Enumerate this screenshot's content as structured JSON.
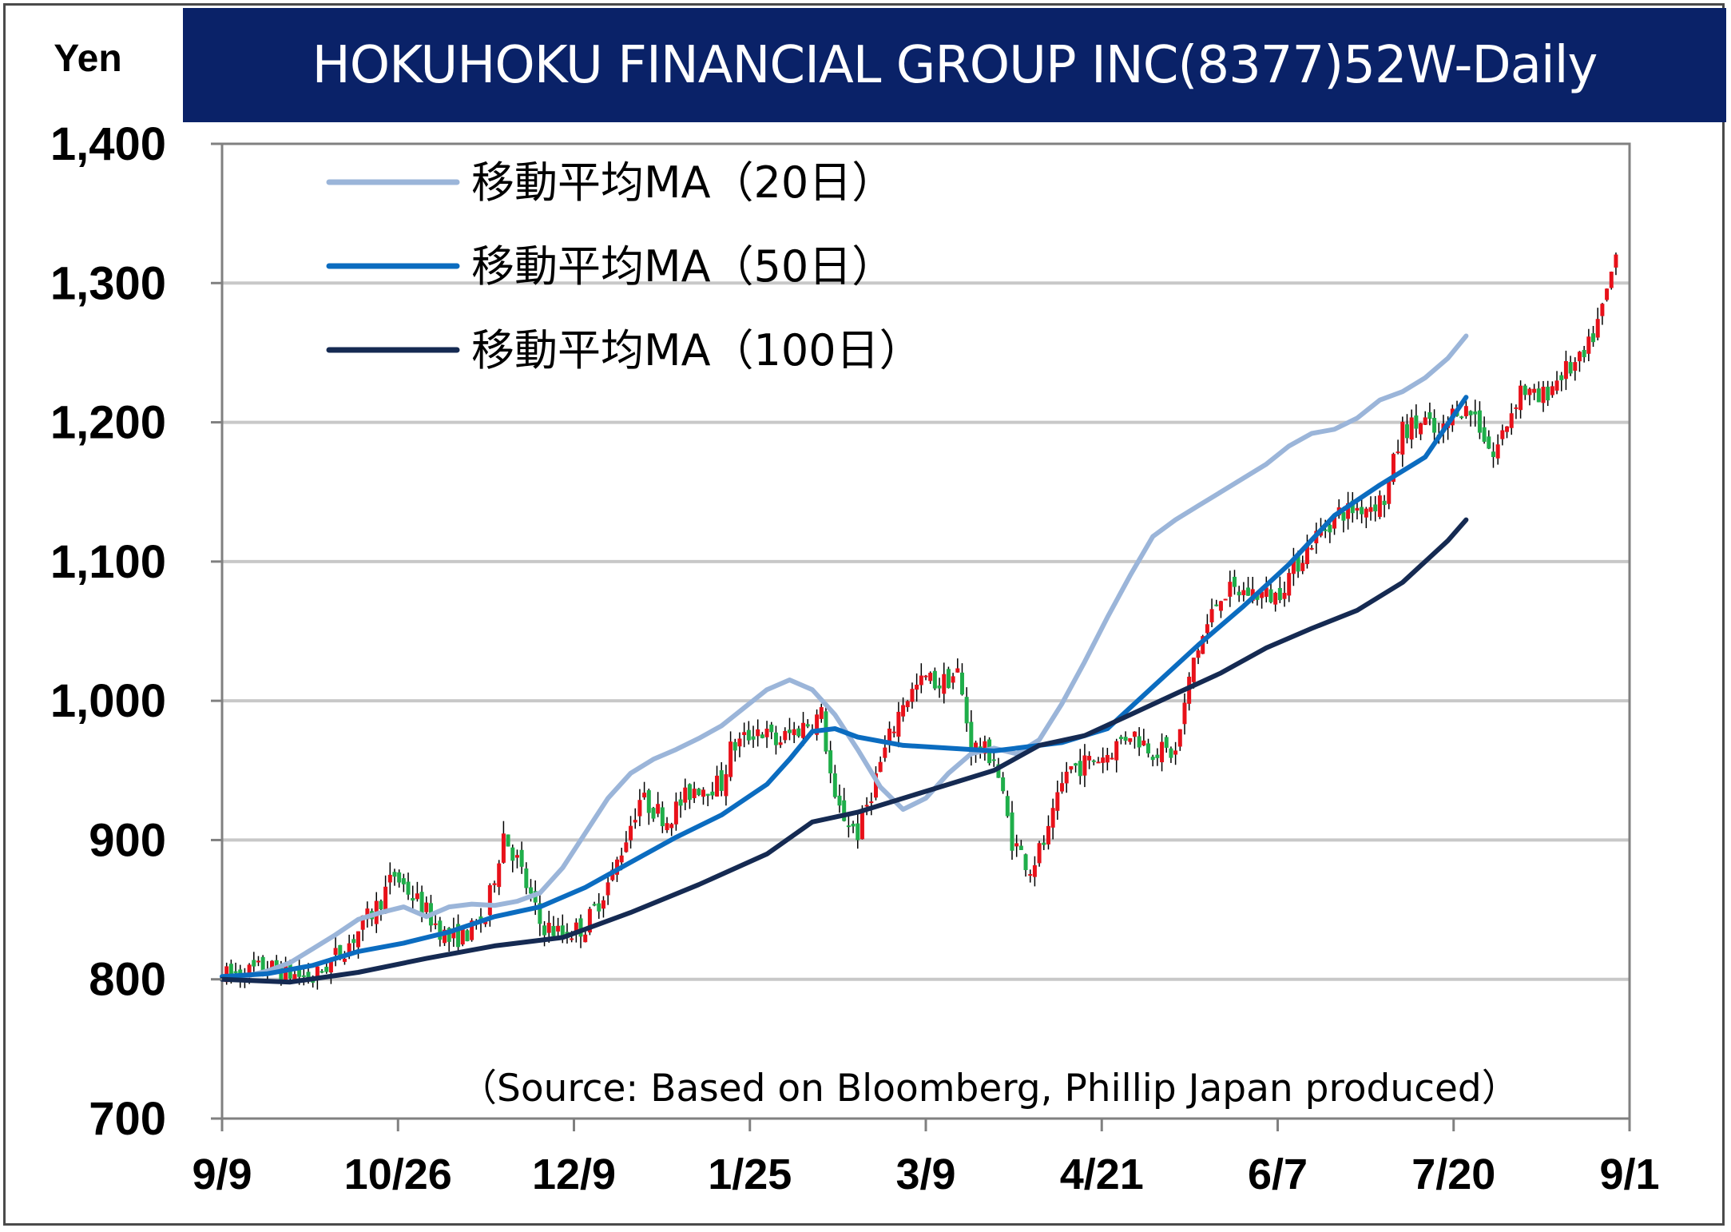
{
  "title": "HOKUHOKU FINANCIAL GROUP INC(8377)52W-Daily",
  "unit": "Yen",
  "source": "（Source: Based on Bloomberg, Phillip Japan produced）",
  "colors": {
    "title_bg": "#0a2268",
    "up": "#e8111a",
    "down": "#1fae4a",
    "wick": "#000000",
    "ma20": "#9bb5d9",
    "ma50": "#0b6cc0",
    "ma100": "#152a52",
    "grid": "#c8c8c8"
  },
  "chart_data": {
    "type": "candlestick",
    "title": "HOKUHOKU FINANCIAL GROUP INC(8377)52W-Daily",
    "ylabel": "Yen",
    "ylim": [
      700,
      1400
    ],
    "yticks": [
      700,
      800,
      900,
      1000,
      1100,
      1200,
      1300,
      1400
    ],
    "ytick_labels": [
      "700",
      "800",
      "900",
      "1,000",
      "1,100",
      "1,200",
      "1,300",
      "1,400"
    ],
    "xtick_labels": [
      "9/9",
      "10/26",
      "12/9",
      "1/25",
      "3/9",
      "4/21",
      "6/7",
      "7/20",
      "9/1"
    ],
    "grid": true,
    "legend_position": "top-left",
    "series": [
      {
        "name": "移動平均MA（20日）",
        "kind": "line",
        "color": "#9bb5d9",
        "points": [
          [
            0,
            800
          ],
          [
            5,
            802
          ],
          [
            10,
            806
          ],
          [
            15,
            812
          ],
          [
            20,
            822
          ],
          [
            25,
            832
          ],
          [
            30,
            843
          ],
          [
            35,
            848
          ],
          [
            40,
            852
          ],
          [
            45,
            845
          ],
          [
            50,
            852
          ],
          [
            55,
            854
          ],
          [
            60,
            853
          ],
          [
            65,
            856
          ],
          [
            70,
            862
          ],
          [
            75,
            880
          ],
          [
            80,
            905
          ],
          [
            85,
            930
          ],
          [
            90,
            948
          ],
          [
            95,
            958
          ],
          [
            100,
            965
          ],
          [
            105,
            973
          ],
          [
            110,
            982
          ],
          [
            115,
            995
          ],
          [
            120,
            1008
          ],
          [
            125,
            1015
          ],
          [
            130,
            1008
          ],
          [
            135,
            990
          ],
          [
            140,
            965
          ],
          [
            145,
            938
          ],
          [
            150,
            922
          ],
          [
            155,
            930
          ],
          [
            160,
            948
          ],
          [
            165,
            962
          ],
          [
            170,
            966
          ],
          [
            175,
            962
          ],
          [
            180,
            972
          ],
          [
            185,
            998
          ],
          [
            190,
            1028
          ],
          [
            195,
            1060
          ],
          [
            200,
            1090
          ],
          [
            205,
            1118
          ],
          [
            210,
            1130
          ],
          [
            215,
            1140
          ],
          [
            220,
            1150
          ],
          [
            225,
            1160
          ],
          [
            230,
            1170
          ],
          [
            235,
            1183
          ],
          [
            240,
            1192
          ],
          [
            245,
            1195
          ],
          [
            250,
            1203
          ],
          [
            255,
            1216
          ],
          [
            260,
            1222
          ],
          [
            265,
            1232
          ],
          [
            270,
            1246
          ],
          [
            274,
            1262
          ]
        ]
      },
      {
        "name": "移動平均MA（50日）",
        "kind": "line",
        "color": "#0b6cc0",
        "points": [
          [
            0,
            802
          ],
          [
            10,
            804
          ],
          [
            20,
            810
          ],
          [
            30,
            820
          ],
          [
            40,
            826
          ],
          [
            50,
            834
          ],
          [
            60,
            845
          ],
          [
            70,
            852
          ],
          [
            80,
            866
          ],
          [
            90,
            884
          ],
          [
            100,
            902
          ],
          [
            110,
            918
          ],
          [
            120,
            940
          ],
          [
            125,
            958
          ],
          [
            130,
            978
          ],
          [
            135,
            980
          ],
          [
            140,
            974
          ],
          [
            150,
            968
          ],
          [
            160,
            966
          ],
          [
            170,
            964
          ],
          [
            175,
            966
          ],
          [
            185,
            970
          ],
          [
            195,
            980
          ],
          [
            205,
            1010
          ],
          [
            215,
            1040
          ],
          [
            225,
            1068
          ],
          [
            235,
            1098
          ],
          [
            245,
            1133
          ],
          [
            255,
            1155
          ],
          [
            265,
            1175
          ],
          [
            274,
            1218
          ]
        ]
      },
      {
        "name": "移動平均MA（100日）",
        "kind": "line",
        "color": "#152a52",
        "points": [
          [
            0,
            800
          ],
          [
            15,
            798
          ],
          [
            30,
            805
          ],
          [
            45,
            815
          ],
          [
            60,
            824
          ],
          [
            75,
            830
          ],
          [
            90,
            848
          ],
          [
            105,
            868
          ],
          [
            120,
            890
          ],
          [
            130,
            913
          ],
          [
            140,
            920
          ],
          [
            150,
            930
          ],
          [
            160,
            940
          ],
          [
            170,
            950
          ],
          [
            180,
            968
          ],
          [
            190,
            975
          ],
          [
            200,
            990
          ],
          [
            210,
            1005
          ],
          [
            220,
            1020
          ],
          [
            230,
            1038
          ],
          [
            240,
            1052
          ],
          [
            250,
            1065
          ],
          [
            260,
            1085
          ],
          [
            270,
            1115
          ],
          [
            274,
            1130
          ]
        ]
      }
    ],
    "ohlc_anchors": [
      [
        0,
        802
      ],
      [
        10,
        808
      ],
      [
        20,
        800
      ],
      [
        28,
        826
      ],
      [
        34,
        852
      ],
      [
        38,
        875
      ],
      [
        45,
        848
      ],
      [
        50,
        828
      ],
      [
        55,
        835
      ],
      [
        58,
        845
      ],
      [
        62,
        905
      ],
      [
        65,
        885
      ],
      [
        70,
        840
      ],
      [
        75,
        832
      ],
      [
        80,
        838
      ],
      [
        86,
        875
      ],
      [
        92,
        930
      ],
      [
        98,
        915
      ],
      [
        104,
        938
      ],
      [
        110,
        940
      ],
      [
        112,
        965
      ],
      [
        118,
        980
      ],
      [
        122,
        970
      ],
      [
        127,
        980
      ],
      [
        132,
        990
      ],
      [
        135,
        925
      ],
      [
        140,
        905
      ],
      [
        145,
        955
      ],
      [
        150,
        1000
      ],
      [
        155,
        1016
      ],
      [
        158,
        1012
      ],
      [
        162,
        1020
      ],
      [
        165,
        968
      ],
      [
        170,
        960
      ],
      [
        174,
        900
      ],
      [
        178,
        880
      ],
      [
        182,
        904
      ],
      [
        186,
        950
      ],
      [
        190,
        955
      ],
      [
        195,
        962
      ],
      [
        200,
        978
      ],
      [
        205,
        965
      ],
      [
        210,
        962
      ],
      [
        214,
        1030
      ],
      [
        220,
        1078
      ],
      [
        226,
        1078
      ],
      [
        232,
        1075
      ],
      [
        240,
        1115
      ],
      [
        246,
        1135
      ],
      [
        252,
        1140
      ],
      [
        256,
        1145
      ],
      [
        260,
        1195
      ],
      [
        265,
        1200
      ],
      [
        268,
        1188
      ],
      [
        272,
        1212
      ],
      [
        276,
        1205
      ],
      [
        280,
        1175
      ],
      [
        286,
        1225
      ],
      [
        290,
        1215
      ],
      [
        295,
        1235
      ],
      [
        300,
        1245
      ],
      [
        304,
        1280
      ],
      [
        307,
        1320
      ]
    ]
  },
  "legend": {
    "items": [
      {
        "label": "移動平均MA（20日）",
        "color": "#9bb5d9"
      },
      {
        "label": "移動平均MA（50日）",
        "color": "#0b6cc0"
      },
      {
        "label": "移動平均MA（100日）",
        "color": "#152a52"
      }
    ]
  }
}
